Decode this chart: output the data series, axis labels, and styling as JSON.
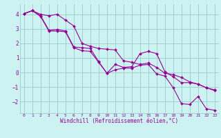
{
  "x": [
    0,
    1,
    2,
    3,
    4,
    5,
    6,
    7,
    8,
    9,
    10,
    11,
    12,
    13,
    14,
    15,
    16,
    17,
    18,
    19,
    20,
    21,
    22,
    23
  ],
  "y_line1": [
    4.05,
    4.25,
    4.0,
    3.9,
    4.0,
    3.6,
    3.2,
    2.0,
    1.8,
    1.65,
    1.6,
    1.55,
    0.8,
    0.7,
    0.55,
    0.65,
    0.35,
    -0.05,
    -0.15,
    -0.35,
    -0.65,
    -0.8,
    -1.05,
    -1.25
  ],
  "y_line2": [
    4.05,
    4.25,
    3.9,
    2.9,
    2.95,
    2.85,
    1.75,
    1.7,
    1.65,
    0.75,
    -0.05,
    0.55,
    0.35,
    0.4,
    1.3,
    1.45,
    1.3,
    0.05,
    -0.3,
    -0.7,
    -0.7,
    -0.8,
    -1.05,
    -1.2
  ],
  "y_line3": [
    4.05,
    4.25,
    3.85,
    2.85,
    2.85,
    2.8,
    1.7,
    1.5,
    1.45,
    0.7,
    -0.05,
    0.18,
    0.3,
    0.3,
    0.5,
    0.55,
    -0.1,
    -0.25,
    -1.05,
    -2.15,
    -2.2,
    -1.65,
    -2.5,
    -2.6
  ],
  "color": "#990099",
  "bg_color": "#ccf2f2",
  "grid_color": "#99cccc",
  "xlabel": "Windchill (Refroidissement éolien,°C)",
  "xlim": [
    -0.5,
    23.5
  ],
  "ylim": [
    -2.8,
    4.7
  ],
  "yticks": [
    -2,
    -1,
    0,
    1,
    2,
    3,
    4
  ],
  "xticks": [
    0,
    1,
    2,
    3,
    4,
    5,
    6,
    7,
    8,
    9,
    10,
    11,
    12,
    13,
    14,
    15,
    16,
    17,
    18,
    19,
    20,
    21,
    22,
    23
  ],
  "marker": "D",
  "markersize": 2.0,
  "linewidth": 0.8
}
